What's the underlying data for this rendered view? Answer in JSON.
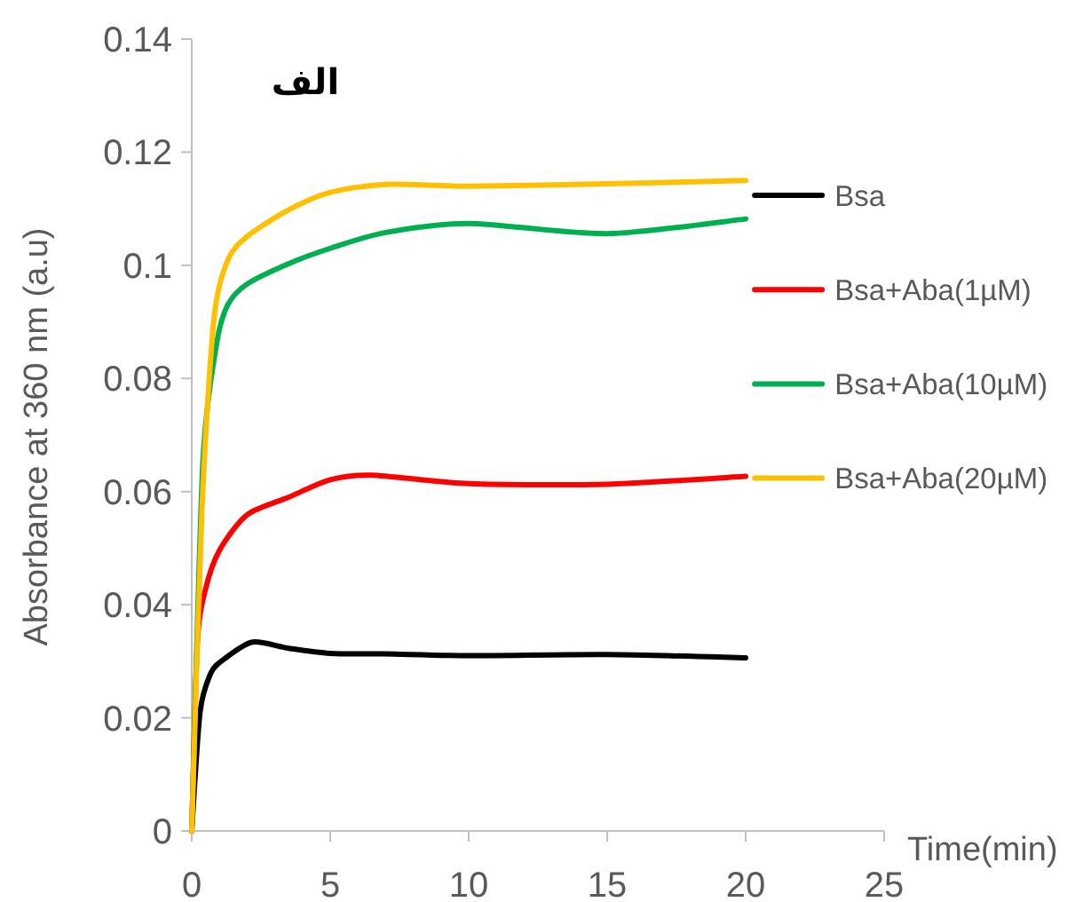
{
  "chart_data": {
    "type": "line",
    "title": "الف",
    "xlabel": "Time(min)",
    "ylabel": "Absorbance at 360 nm (a.u)",
    "xlim": [
      0,
      25
    ],
    "xticks": [
      0,
      5,
      10,
      15,
      20,
      25
    ],
    "ylim": [
      0,
      0.14
    ],
    "yticks": [
      0,
      0.02,
      0.04,
      0.06,
      0.08,
      0.1,
      0.12,
      0.14
    ],
    "legend": "right",
    "marker": "none",
    "line_style": "solid",
    "series": [
      {
        "name": "Bsa",
        "color": "#000000",
        "x": [
          0,
          0.3,
          0.7,
          1.2,
          2.2,
          3.5,
          5,
          7,
          10,
          15,
          20
        ],
        "values": [
          0,
          0.021,
          0.028,
          0.0305,
          0.0334,
          0.0323,
          0.0314,
          0.0313,
          0.031,
          0.0312,
          0.0306
        ]
      },
      {
        "name": "Bsa+Aba(1µM)",
        "color": "#ff0000",
        "x": [
          0,
          0.2,
          0.48,
          1,
          2,
          3.5,
          5,
          6.5,
          10,
          15,
          20
        ],
        "values": [
          0,
          0.033,
          0.0424,
          0.0496,
          0.0559,
          0.059,
          0.0621,
          0.0629,
          0.0614,
          0.0613,
          0.0627
        ]
      },
      {
        "name": "Bsa+Aba(10µM)",
        "color": "#00b050",
        "x": [
          0,
          0.4,
          0.9,
          1.3,
          2,
          3.5,
          5,
          7,
          10,
          15,
          20
        ],
        "values": [
          0,
          0.065,
          0.0862,
          0.093,
          0.0967,
          0.1003,
          0.103,
          0.1058,
          0.1074,
          0.1056,
          0.1082
        ]
      },
      {
        "name": "Bsa+Aba(20µM)",
        "color": "#ffc000",
        "x": [
          0,
          0.37,
          0.8,
          1.3,
          2,
          3.5,
          5,
          7,
          10,
          15,
          20
        ],
        "values": [
          0,
          0.057,
          0.0904,
          0.1009,
          0.1051,
          0.1098,
          0.1129,
          0.1143,
          0.114,
          0.1144,
          0.115
        ]
      }
    ]
  }
}
